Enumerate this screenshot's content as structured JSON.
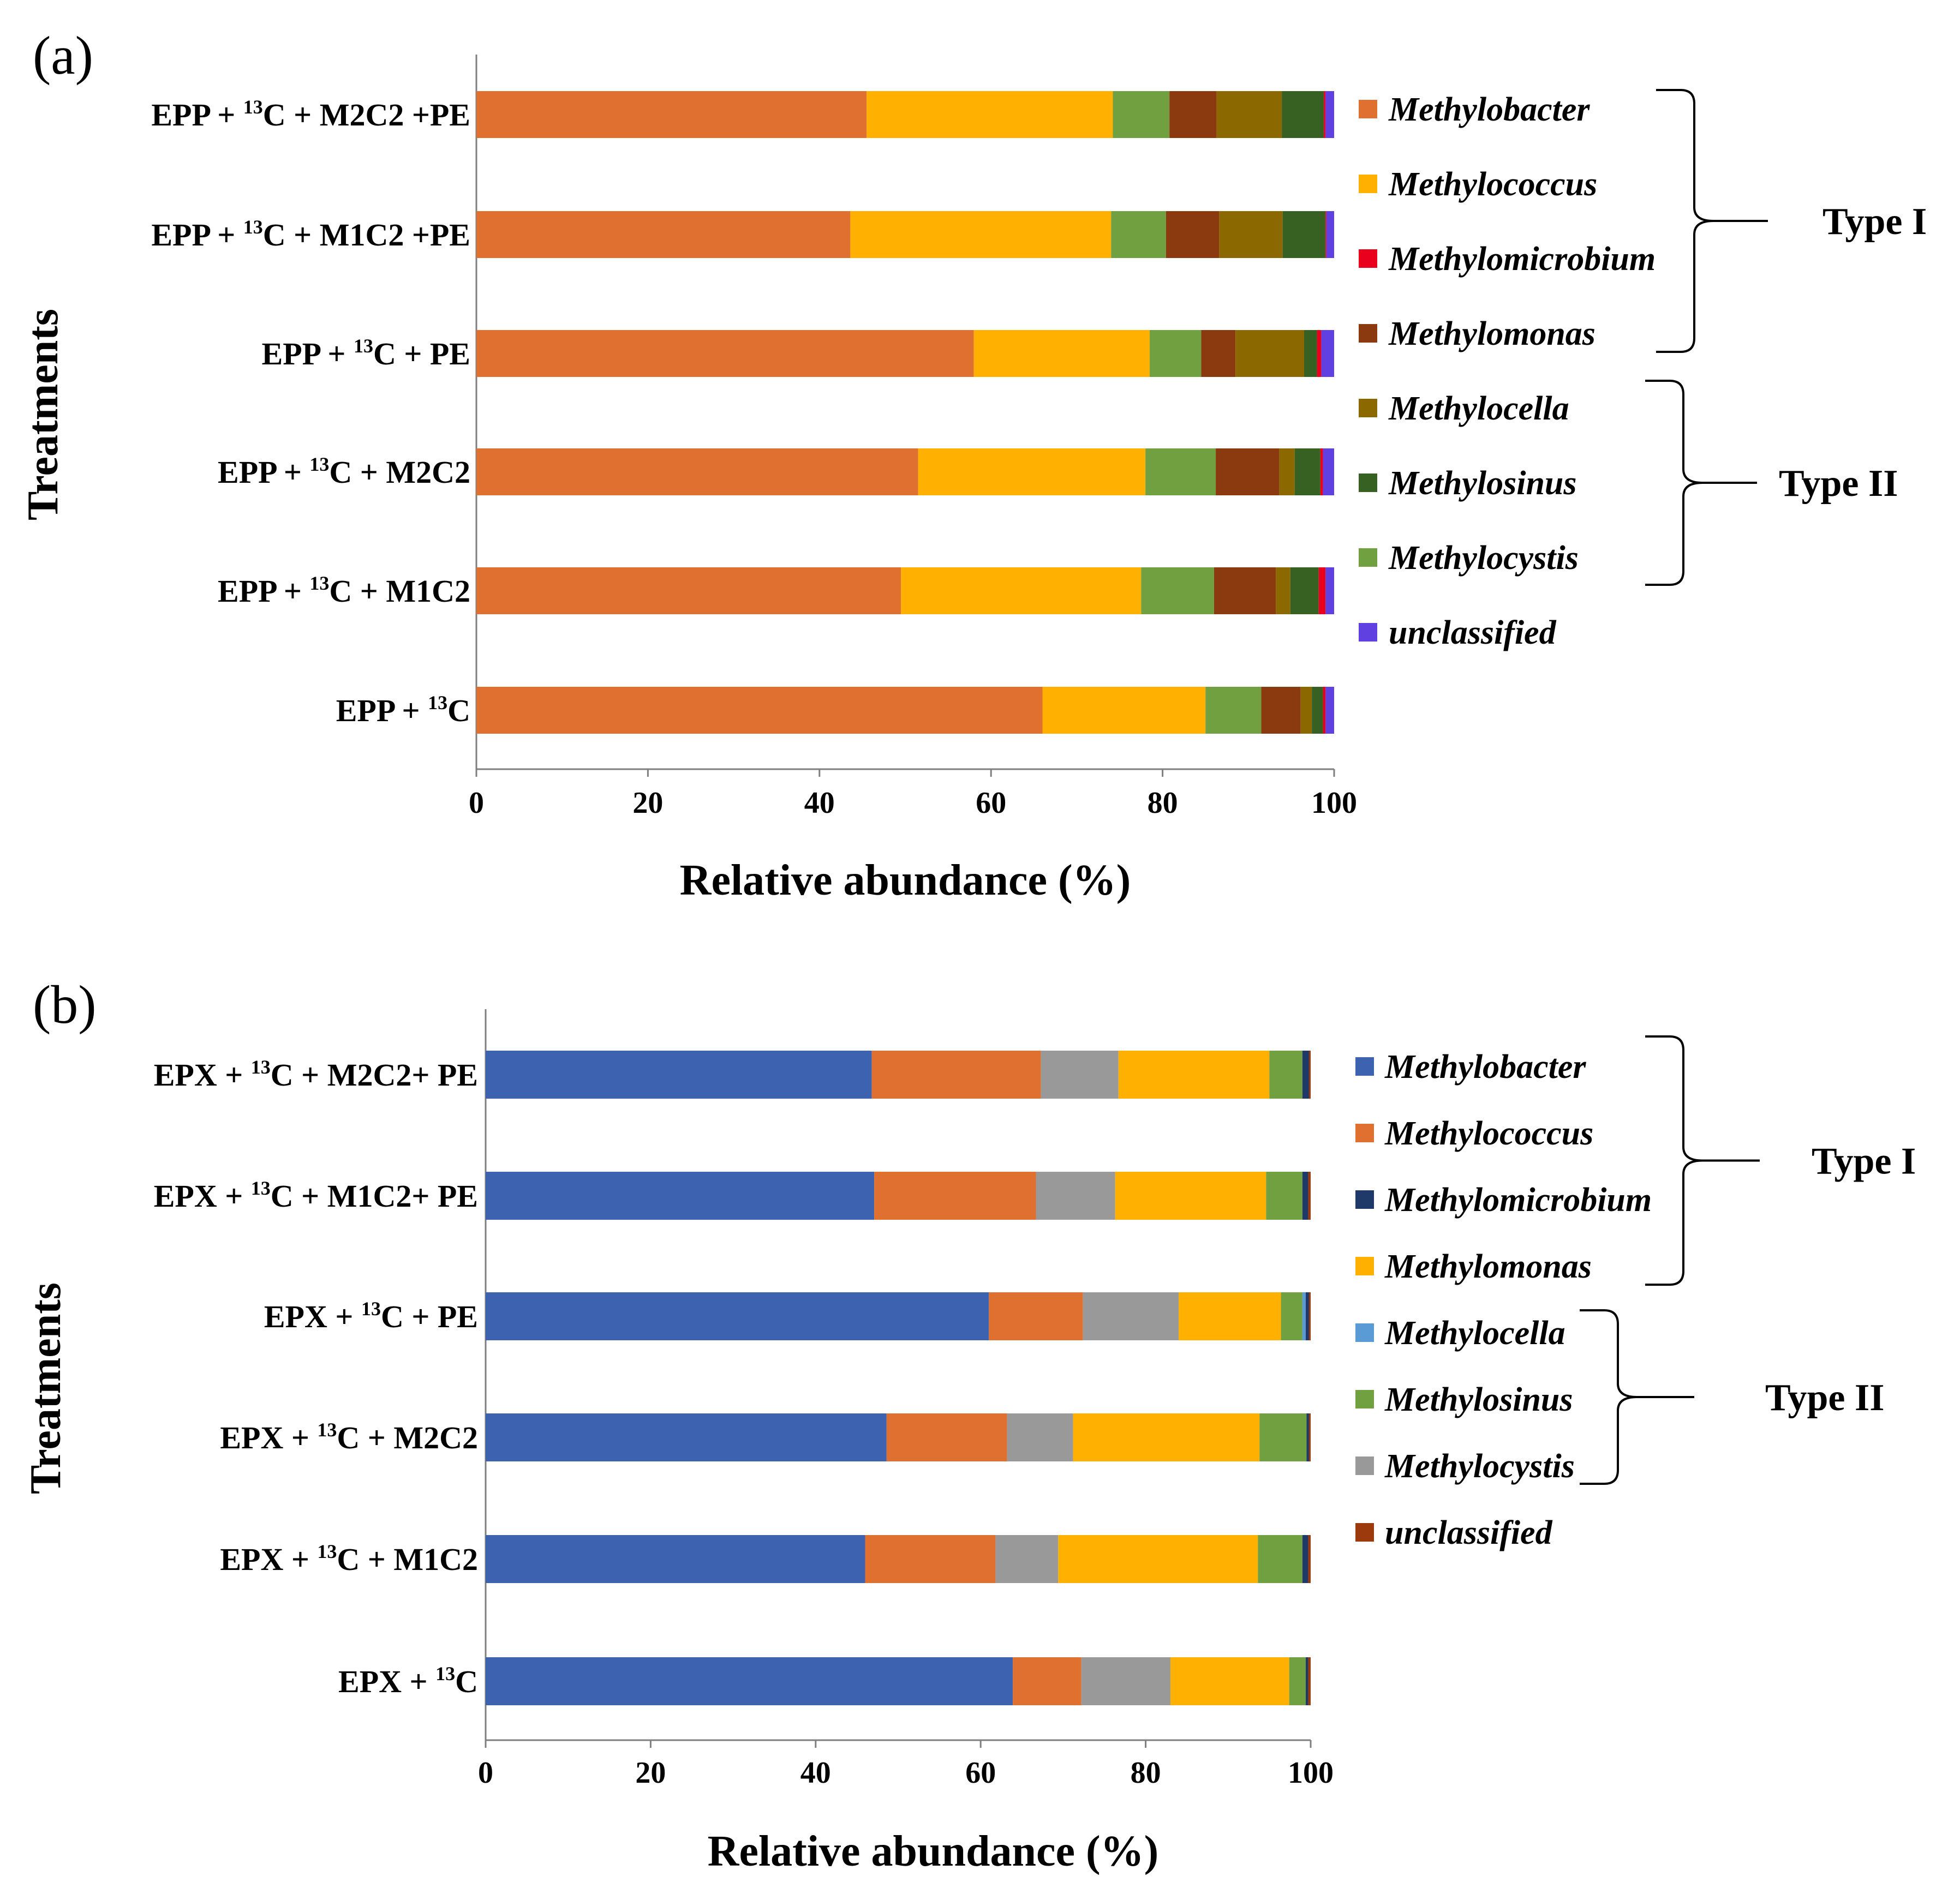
{
  "chart_data": [
    {
      "panel": "(a)",
      "type": "bar",
      "orientation": "horizontal",
      "stacked": true,
      "xlabel": "Relative abundance (%)",
      "ylabel": "Treatments",
      "xlim": [
        0,
        100
      ],
      "xticks": [
        "0",
        "20",
        "40",
        "60",
        "80",
        "100"
      ],
      "categories": [
        {
          "main": "EPP + ",
          "sup": "13",
          "rest": "C + M2C2 +PE"
        },
        {
          "main": "EPP + ",
          "sup": "13",
          "rest": "C + M1C2 +PE"
        },
        {
          "main": "EPP + ",
          "sup": "13",
          "rest": "C + PE"
        },
        {
          "main": "EPP + ",
          "sup": "13",
          "rest": "C + M2C2"
        },
        {
          "main": "EPP + ",
          "sup": "13",
          "rest": "C + M1C2"
        },
        {
          "main": "EPP + ",
          "sup": "13",
          "rest": "C"
        }
      ],
      "series": [
        {
          "name": "Methylobacter",
          "color": "#E07030",
          "values": [
            45.5,
            43.6,
            58.0,
            51.5,
            49.5,
            66.0
          ]
        },
        {
          "name": "Methylococcus",
          "color": "#FFB000",
          "values": [
            28.7,
            30.4,
            20.5,
            26.5,
            28.0,
            19.0
          ]
        },
        {
          "name": "Methylocystis",
          "color": "#70A040",
          "values": [
            6.6,
            6.4,
            6.0,
            8.2,
            8.5,
            6.5
          ]
        },
        {
          "name": "Methylomonas",
          "color": "#8B3A10",
          "values": [
            5.5,
            6.2,
            4.0,
            7.4,
            7.2,
            4.6
          ]
        },
        {
          "name": "Methylocella",
          "color": "#8B6800",
          "values": [
            7.6,
            7.4,
            8.0,
            1.8,
            1.7,
            1.3
          ]
        },
        {
          "name": "Methylosinus",
          "color": "#376023",
          "values": [
            4.9,
            5.0,
            1.5,
            3.0,
            3.3,
            1.3
          ]
        },
        {
          "name": "Methylomicrobium",
          "color": "#E8001C",
          "values": [
            0.2,
            0.1,
            0.5,
            0.3,
            0.8,
            0.3
          ]
        },
        {
          "name": "unclassified",
          "color": "#6040E0",
          "values": [
            1.0,
            0.9,
            1.5,
            1.3,
            1.0,
            1.0
          ]
        }
      ],
      "legend": [
        "Methylobacter",
        "Methylococcus",
        "Methylomicrobium",
        "Methylomonas",
        "Methylocella",
        "Methylosinus",
        "Methylocystis",
        "unclassified"
      ],
      "groups": [
        {
          "label": "Type I",
          "members": [
            "Methylobacter",
            "Methylococcus",
            "Methylomicrobium",
            "Methylomonas"
          ]
        },
        {
          "label": "Type II",
          "members": [
            "Methylocella",
            "Methylosinus",
            "Methylocystis"
          ]
        }
      ]
    },
    {
      "panel": "(b)",
      "type": "bar",
      "orientation": "horizontal",
      "stacked": true,
      "xlabel": "Relative abundance (%)",
      "ylabel": "Treatments",
      "xlim": [
        0,
        100
      ],
      "xticks": [
        "0",
        "20",
        "40",
        "60",
        "80",
        "100"
      ],
      "categories": [
        {
          "main": "EPX + ",
          "sup": "13",
          "rest": "C + M2C2+ PE"
        },
        {
          "main": "EPX + ",
          "sup": "13",
          "rest": "C + M1C2+ PE"
        },
        {
          "main": "EPX + ",
          "sup": "13",
          "rest": "C + PE"
        },
        {
          "main": "EPX + ",
          "sup": "13",
          "rest": "C + M2C2"
        },
        {
          "main": "EPX + ",
          "sup": "13",
          "rest": "C + M1C2"
        },
        {
          "main": "EPX + ",
          "sup": "13",
          "rest": "C"
        }
      ],
      "series": [
        {
          "name": "Methylobacter",
          "color": "#3D62B0",
          "values": [
            46.8,
            47.1,
            61.0,
            48.6,
            46.0,
            63.9
          ]
        },
        {
          "name": "Methylococcus",
          "color": "#E07030",
          "values": [
            20.5,
            19.6,
            11.4,
            14.6,
            15.8,
            8.3
          ]
        },
        {
          "name": "Methylocystis",
          "color": "#999999",
          "values": [
            9.4,
            9.6,
            11.6,
            8.0,
            7.6,
            10.8
          ]
        },
        {
          "name": "Methylomonas",
          "color": "#FFB000",
          "values": [
            18.3,
            18.3,
            12.4,
            22.6,
            24.2,
            14.4
          ]
        },
        {
          "name": "Methylosinus",
          "color": "#70A040",
          "values": [
            4.0,
            4.4,
            2.6,
            5.7,
            5.4,
            2.0
          ]
        },
        {
          "name": "Methylocella",
          "color": "#5B9BD5",
          "values": [
            0.0,
            0.0,
            0.4,
            0.0,
            0.0,
            0.0
          ]
        },
        {
          "name": "Methylomicrobium",
          "color": "#1F3A68",
          "values": [
            0.8,
            0.7,
            0.4,
            0.3,
            0.7,
            0.3
          ]
        },
        {
          "name": "unclassified",
          "color": "#9C3A0E",
          "values": [
            0.2,
            0.3,
            0.2,
            0.2,
            0.3,
            0.3
          ]
        }
      ],
      "legend": [
        "Methylobacter",
        "Methylococcus",
        "Methylomicrobium",
        "Methylomonas",
        "Methylocella",
        "Methylosinus",
        "Methylocystis",
        "unclassified"
      ],
      "groups": [
        {
          "label": "Type I",
          "members": [
            "Methylobacter",
            "Methylococcus",
            "Methylomicrobium",
            "Methylomonas"
          ]
        },
        {
          "label": "Type II",
          "members": [
            "Methylocella",
            "Methylosinus",
            "Methylocystis"
          ]
        }
      ]
    }
  ]
}
